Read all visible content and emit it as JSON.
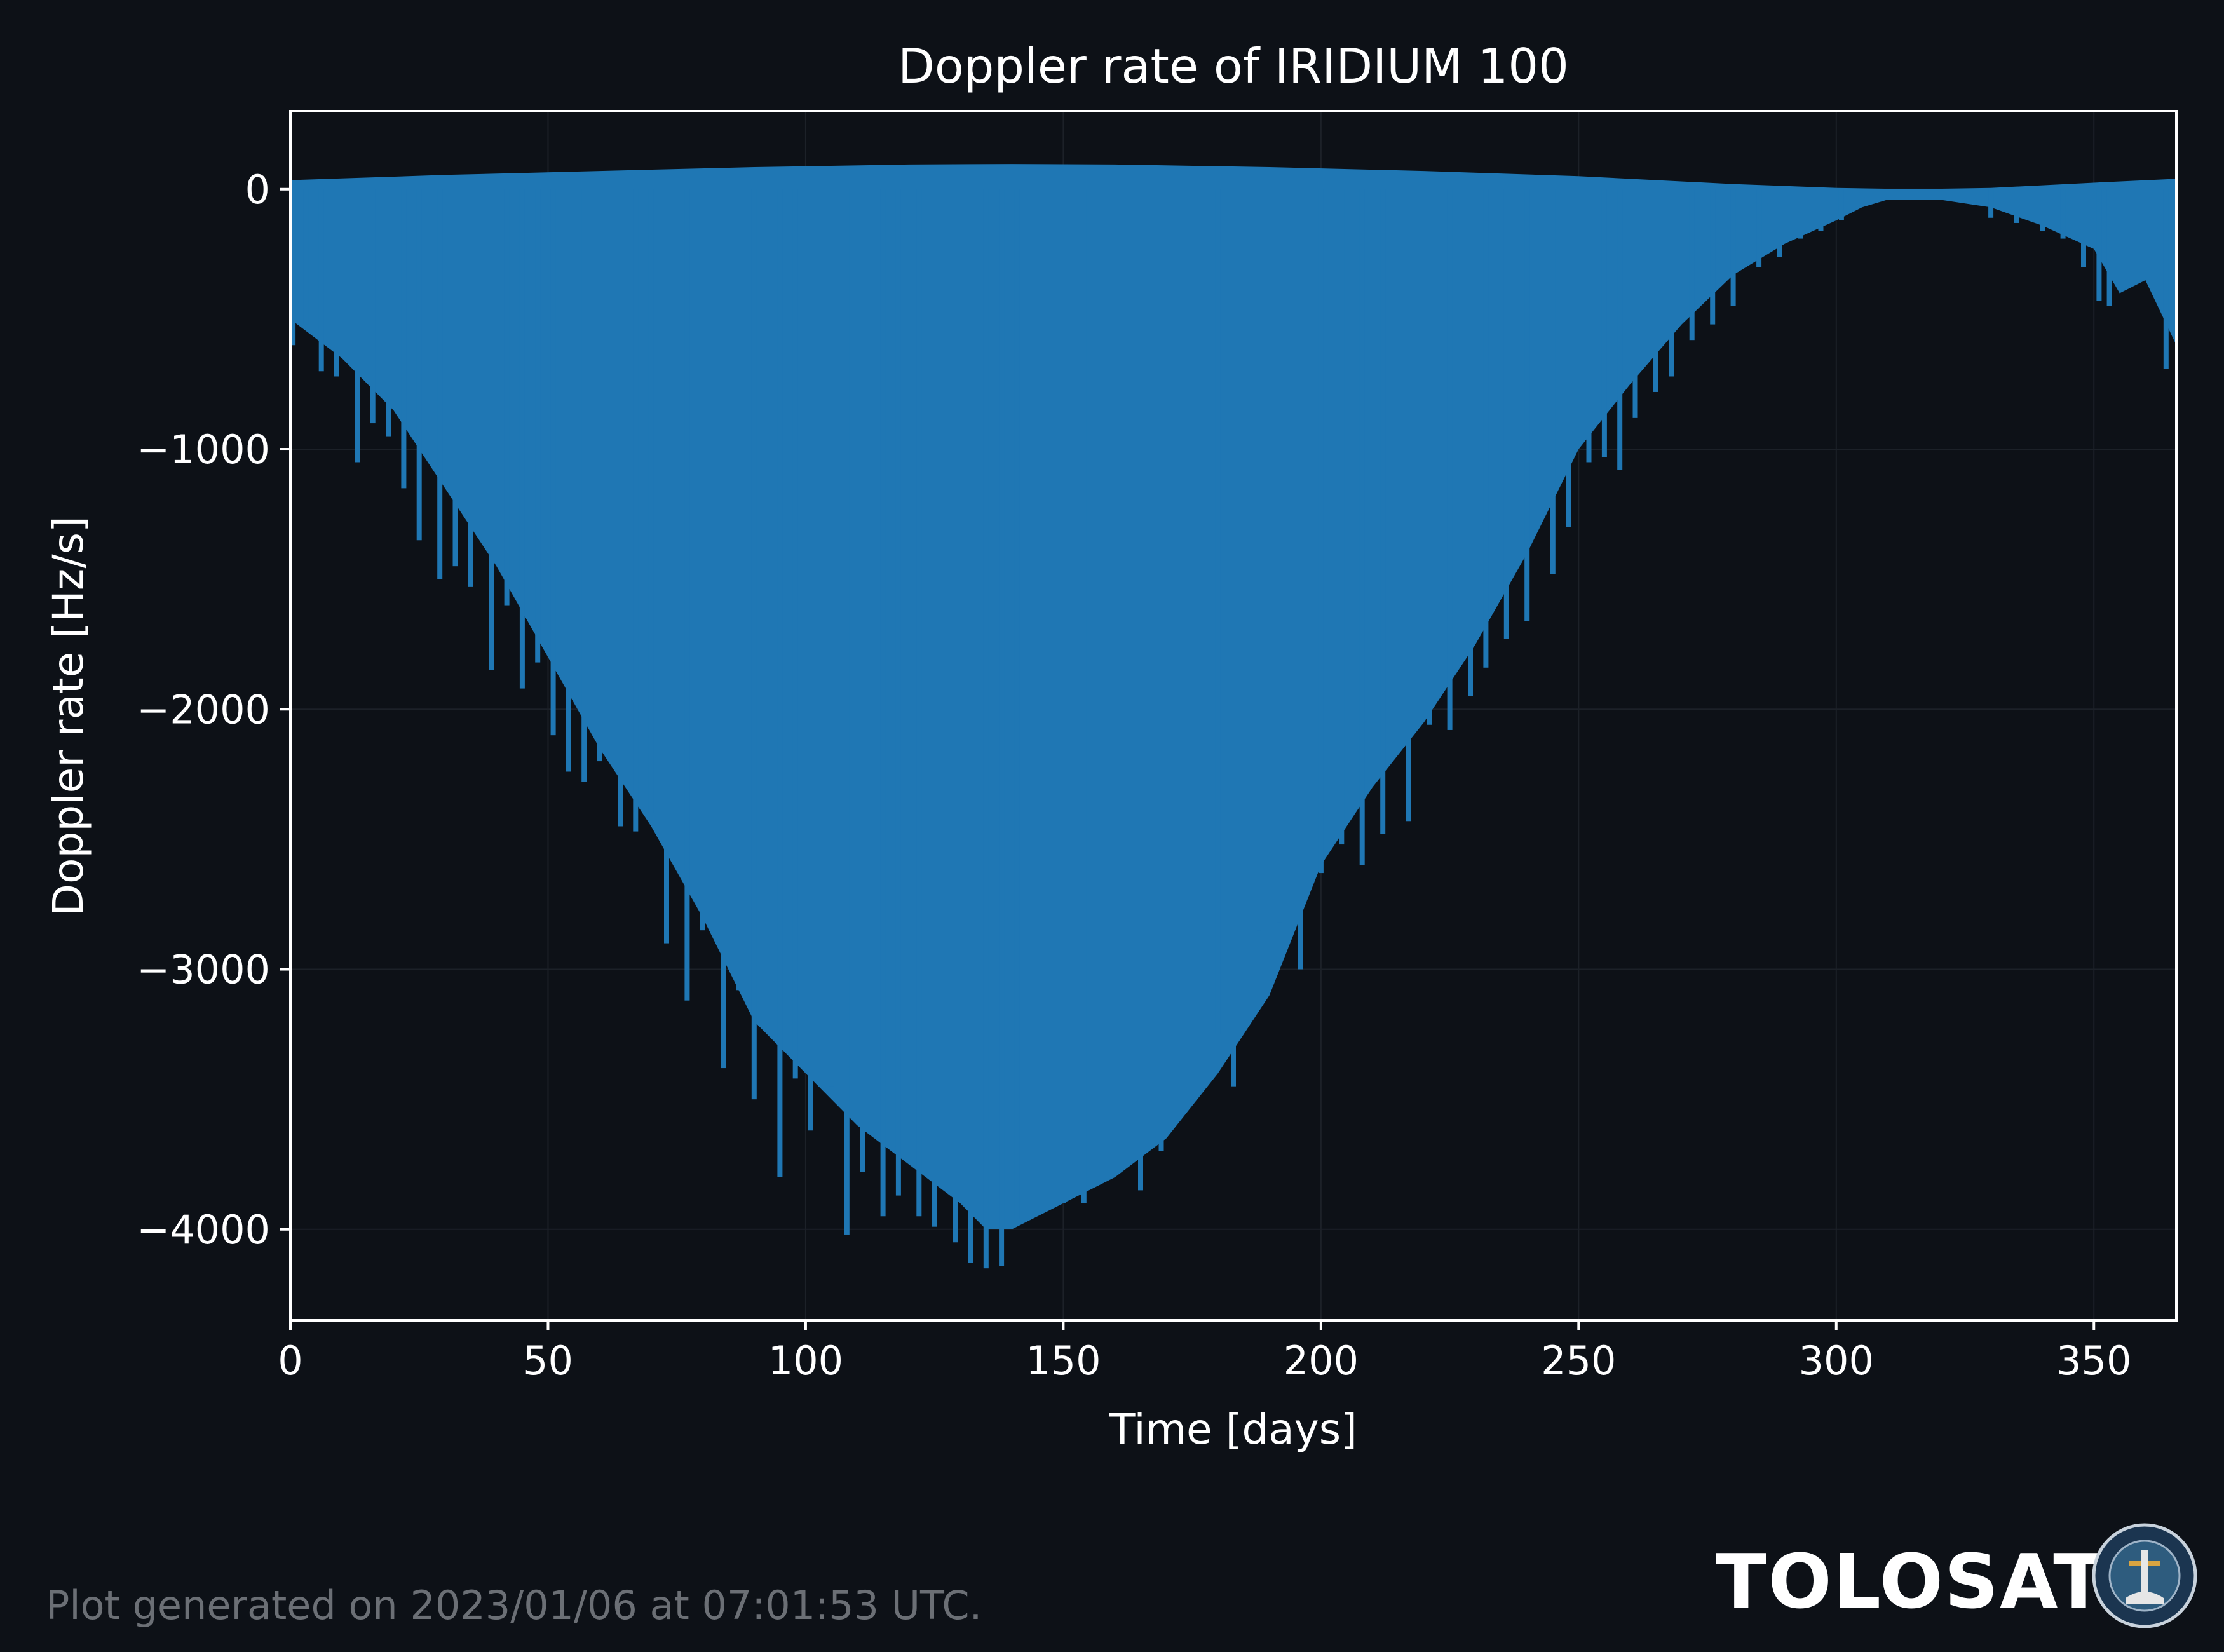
{
  "page": {
    "footer_note": "Plot generated on 2023/01/06 at 07:01:53 UTC.",
    "brand": "TOLOSAT",
    "logo_text": "ASTRE·CC SUPAERO · TOLOSAT"
  },
  "colors": {
    "background": "#0d1117",
    "fill": "#1f77b4",
    "text": "#ffffff",
    "grid": "#1c2128",
    "footer": "#6b6f75"
  },
  "chart_data": {
    "type": "area",
    "title": "Doppler rate of IRIDIUM 100",
    "xlabel": "Time [days]",
    "ylabel": "Doppler rate [Hz/s]",
    "xlim": [
      0,
      366
    ],
    "ylim": [
      -4350,
      300
    ],
    "xticks": [
      0,
      50,
      100,
      150,
      200,
      250,
      300,
      350
    ],
    "yticks": [
      0,
      -1000,
      -2000,
      -3000,
      -4000
    ],
    "xtick_labels": [
      "0",
      "50",
      "100",
      "150",
      "200",
      "250",
      "300",
      "350"
    ],
    "ytick_labels": [
      "0",
      "−1000",
      "−2000",
      "−3000",
      "−4000"
    ],
    "grid": true,
    "upper_envelope": {
      "x": [
        0,
        30,
        60,
        90,
        120,
        140,
        160,
        190,
        220,
        250,
        280,
        300,
        315,
        330,
        350,
        366
      ],
      "y": [
        35,
        55,
        70,
        85,
        95,
        97,
        95,
        85,
        70,
        50,
        20,
        5,
        0,
        5,
        25,
        40
      ]
    },
    "lower_envelope": {
      "x": [
        0,
        10,
        20,
        30,
        40,
        50,
        60,
        70,
        80,
        90,
        100,
        110,
        120,
        130,
        135,
        140,
        150,
        160,
        170,
        180,
        190,
        200,
        210,
        220,
        230,
        240,
        250,
        260,
        270,
        280,
        290,
        300,
        305,
        310,
        320,
        330,
        340,
        350,
        355,
        360,
        366
      ],
      "y": [
        -500,
        -650,
        -850,
        -1150,
        -1450,
        -1800,
        -2150,
        -2450,
        -2800,
        -3200,
        -3400,
        -3600,
        -3750,
        -3900,
        -4000,
        -4000,
        -3900,
        -3800,
        -3650,
        -3400,
        -3100,
        -2600,
        -2300,
        -2050,
        -1750,
        -1400,
        -1000,
        -750,
        -520,
        -330,
        -210,
        -120,
        -70,
        -40,
        -40,
        -70,
        -140,
        -230,
        -400,
        -350,
        -600
      ]
    },
    "spikes": [
      {
        "x": 0.5,
        "y": -600
      },
      {
        "x": 3,
        "y": -520
      },
      {
        "x": 6,
        "y": -700
      },
      {
        "x": 9,
        "y": -720
      },
      {
        "x": 13,
        "y": -1050
      },
      {
        "x": 16,
        "y": -900
      },
      {
        "x": 19,
        "y": -950
      },
      {
        "x": 22,
        "y": -1150
      },
      {
        "x": 25,
        "y": -1350
      },
      {
        "x": 29,
        "y": -1500
      },
      {
        "x": 32,
        "y": -1450
      },
      {
        "x": 35,
        "y": -1530
      },
      {
        "x": 39,
        "y": -1850
      },
      {
        "x": 42,
        "y": -1600
      },
      {
        "x": 45,
        "y": -1920
      },
      {
        "x": 48,
        "y": -1820
      },
      {
        "x": 51,
        "y": -2100
      },
      {
        "x": 54,
        "y": -2240
      },
      {
        "x": 57,
        "y": -2280
      },
      {
        "x": 60,
        "y": -2200
      },
      {
        "x": 64,
        "y": -2450
      },
      {
        "x": 67,
        "y": -2470
      },
      {
        "x": 70,
        "y": -2400
      },
      {
        "x": 73,
        "y": -2900
      },
      {
        "x": 77,
        "y": -3120
      },
      {
        "x": 80,
        "y": -2850
      },
      {
        "x": 84,
        "y": -3380
      },
      {
        "x": 87,
        "y": -3080
      },
      {
        "x": 90,
        "y": -3500
      },
      {
        "x": 95,
        "y": -3800
      },
      {
        "x": 98,
        "y": -3420
      },
      {
        "x": 101,
        "y": -3620
      },
      {
        "x": 105,
        "y": -3450
      },
      {
        "x": 108,
        "y": -4020
      },
      {
        "x": 111,
        "y": -3780
      },
      {
        "x": 115,
        "y": -3950
      },
      {
        "x": 118,
        "y": -3870
      },
      {
        "x": 122,
        "y": -3950
      },
      {
        "x": 125,
        "y": -3990
      },
      {
        "x": 129,
        "y": -4050
      },
      {
        "x": 132,
        "y": -4130
      },
      {
        "x": 135,
        "y": -4150
      },
      {
        "x": 138,
        "y": -4140
      },
      {
        "x": 141,
        "y": -3960
      },
      {
        "x": 146,
        "y": -3930
      },
      {
        "x": 150,
        "y": -3900
      },
      {
        "x": 154,
        "y": -3900
      },
      {
        "x": 160,
        "y": -3700
      },
      {
        "x": 165,
        "y": -3850
      },
      {
        "x": 169,
        "y": -3700
      },
      {
        "x": 175,
        "y": -3500
      },
      {
        "x": 180,
        "y": -3250
      },
      {
        "x": 183,
        "y": -3450
      },
      {
        "x": 188,
        "y": -2850
      },
      {
        "x": 192,
        "y": -2820
      },
      {
        "x": 196,
        "y": -3000
      },
      {
        "x": 200,
        "y": -2630
      },
      {
        "x": 204,
        "y": -2520
      },
      {
        "x": 208,
        "y": -2600
      },
      {
        "x": 212,
        "y": -2480
      },
      {
        "x": 217,
        "y": -2430
      },
      {
        "x": 221,
        "y": -2060
      },
      {
        "x": 225,
        "y": -2080
      },
      {
        "x": 229,
        "y": -1950
      },
      {
        "x": 232,
        "y": -1840
      },
      {
        "x": 236,
        "y": -1730
      },
      {
        "x": 240,
        "y": -1660
      },
      {
        "x": 245,
        "y": -1480
      },
      {
        "x": 248,
        "y": -1300
      },
      {
        "x": 252,
        "y": -1050
      },
      {
        "x": 255,
        "y": -1030
      },
      {
        "x": 258,
        "y": -1080
      },
      {
        "x": 261,
        "y": -880
      },
      {
        "x": 265,
        "y": -780
      },
      {
        "x": 268,
        "y": -720
      },
      {
        "x": 272,
        "y": -580
      },
      {
        "x": 276,
        "y": -520
      },
      {
        "x": 280,
        "y": -450
      },
      {
        "x": 285,
        "y": -300
      },
      {
        "x": 289,
        "y": -260
      },
      {
        "x": 293,
        "y": -190
      },
      {
        "x": 297,
        "y": -160
      },
      {
        "x": 301,
        "y": -120
      },
      {
        "x": 330,
        "y": -110
      },
      {
        "x": 335,
        "y": -130
      },
      {
        "x": 340,
        "y": -160
      },
      {
        "x": 344,
        "y": -190
      },
      {
        "x": 348,
        "y": -300
      },
      {
        "x": 351,
        "y": -430
      },
      {
        "x": 353,
        "y": -450
      },
      {
        "x": 356,
        "y": -360
      },
      {
        "x": 364,
        "y": -690
      }
    ]
  }
}
